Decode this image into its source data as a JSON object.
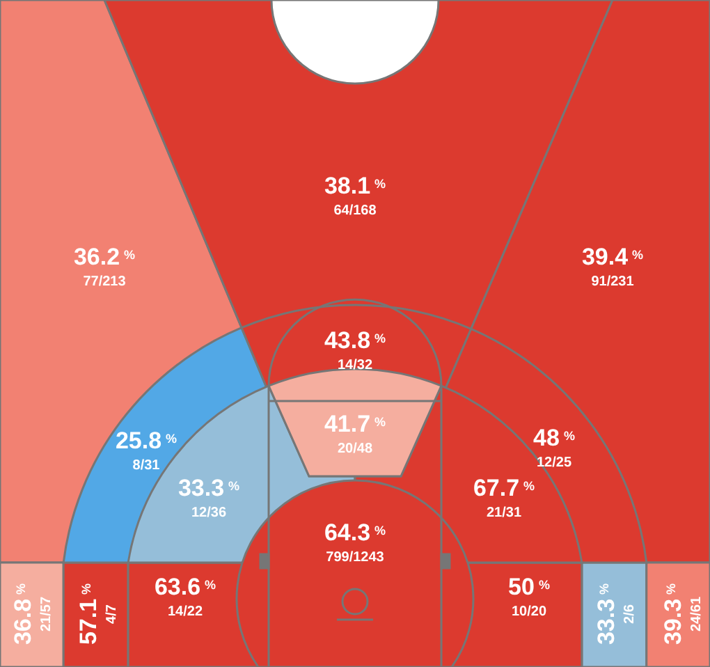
{
  "chart_data": {
    "type": "other",
    "categories": [
      "77/213",
      "64/168",
      "91/231",
      "8/31",
      "14/32",
      "12/25",
      "12/36",
      "20/48",
      "21/31",
      "799/1243",
      "14/22",
      "10/20",
      "21/57",
      "4/7",
      "2/6",
      "24/61"
    ],
    "values": [
      36.2,
      38.1,
      39.4,
      25.8,
      43.8,
      48,
      33.3,
      41.7,
      67.7,
      64.3,
      63.6,
      50,
      36.8,
      57.1,
      33.3,
      39.3
    ],
    "value_labels": [
      "36.2$^{%}$",
      "38.1$^{%}$",
      "39.4$^{%}$",
      "25.8$^{%}$",
      "43.8$^{%}$",
      "48$^{%}$",
      "33.3$^{%}$",
      "41.7$^{%}$",
      "67.7$^{%}$",
      "64.3$^{%}$",
      "63.6$^{%}$",
      "50$^{%}$",
      "36.8$^{%}$",
      "57.1$^{%}$",
      "33.3$^{%}$",
      "39.3$^{%}$"
    ],
    "colors": [
      "#f28172",
      "#dc3a2f",
      "#dc3a2f",
      "#52a8e6",
      "#dc3a2f",
      "#dc3a2f",
      "#95bed9",
      "#f5ae9f",
      "#dc3a2f",
      "#dc3a2f",
      "#dc3a2f",
      "#dc3a2f",
      "#f5ae9f",
      "#dc3a2f",
      "#95bed9",
      "#f28172"
    ]
  }
}
